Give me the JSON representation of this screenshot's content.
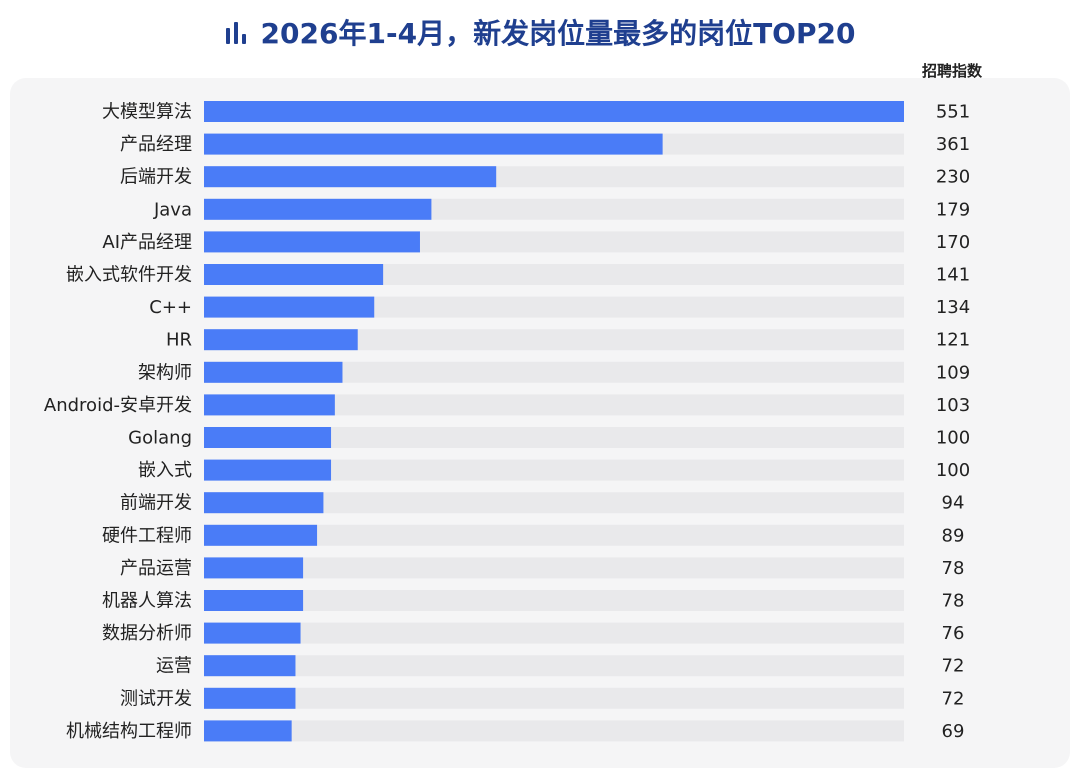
{
  "header": {
    "title": "2026年1-4月，新发岗位量最多的岗位TOP20",
    "icon": "bar-chart-icon"
  },
  "colors": {
    "bar": "#4a7cf7",
    "track": "#e9e9eb",
    "title": "#1f3f8f"
  },
  "chart_data": {
    "type": "bar",
    "orientation": "horizontal",
    "title": "2026年1-4月，新发岗位量最多的岗位TOP20",
    "value_label": "招聘指数",
    "categories": [
      "大模型算法",
      "产品经理",
      "后端开发",
      "Java",
      "AI产品经理",
      "嵌入式软件开发",
      "C++",
      "HR",
      "架构师",
      "Android-安卓开发",
      "Golang",
      "嵌入式",
      "前端开发",
      "硬件工程师",
      "产品运营",
      "机器人算法",
      "数据分析师",
      "运营",
      "测试开发",
      "机械结构工程师"
    ],
    "values": [
      551,
      361,
      230,
      179,
      170,
      141,
      134,
      121,
      109,
      103,
      100,
      100,
      94,
      89,
      78,
      78,
      76,
      72,
      72,
      69
    ],
    "xlim": [
      0,
      551
    ],
    "grid": false,
    "legend": "none"
  }
}
